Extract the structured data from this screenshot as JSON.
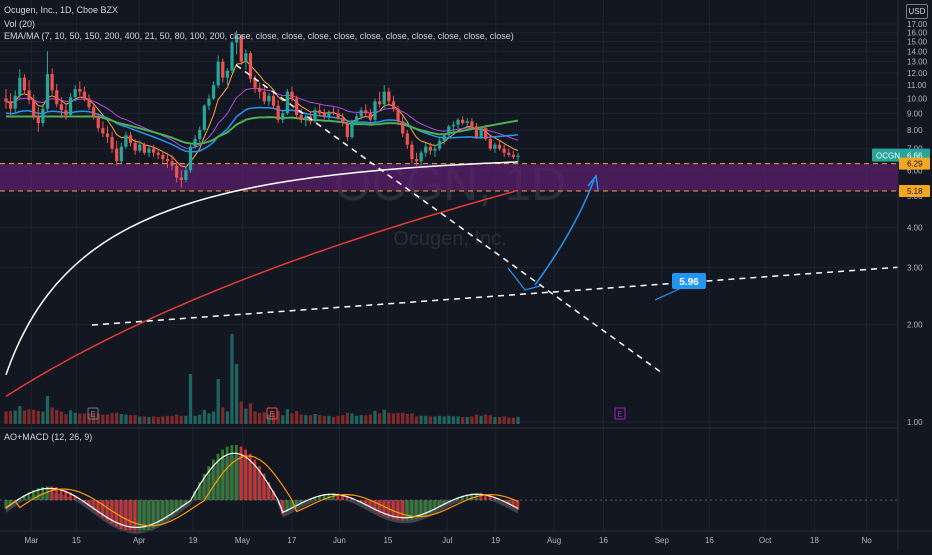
{
  "header": {
    "title": "Ocugen, Inc., 1D, Cboe BZX",
    "volume_legend": "Vol (20)",
    "ma_legend": "EMA/MA (7, 10, 50, 150, 200, 400, 21, 50, 80, 100, 200, close, close, close, close, close, close, close, close, close, close, close)",
    "osc_legend": "AO+MACD (12, 26, 9)",
    "currency": "USD",
    "watermark": "OCGN, 1D",
    "watermark_sub": "Ocugen, Inc."
  },
  "chart_data": {
    "type": "candlestick",
    "symbol": "OCGN",
    "timeframe": "1D",
    "price_axis": {
      "range": [
        0.8,
        17.6
      ],
      "ticks": [
        "1.00",
        "2.00",
        "3.00",
        "4.00",
        "5.00",
        "6.00",
        "7.00",
        "8.00",
        "9.00",
        "10.00",
        "11.00",
        "12.00",
        "13.00",
        "14.00",
        "15.00",
        "16.00",
        "17.00"
      ]
    },
    "time_axis": {
      "labels": [
        "Mar",
        "15",
        "Apr",
        "19",
        "May",
        "17",
        "Jun",
        "15",
        "Jul",
        "19",
        "Aug",
        "16",
        "Sep",
        "16",
        "Oct",
        "18",
        "No"
      ]
    },
    "last_price": {
      "symbol": "OCGN",
      "value": "6.66",
      "color": "#26a69a"
    },
    "levels": [
      {
        "label": "6.29",
        "value": 6.29,
        "color": "#f5a623"
      },
      {
        "label": "5.18",
        "value": 5.18,
        "color": "#f5a623"
      }
    ],
    "annotation_callout": "5.96",
    "colors": {
      "up": "#26a69a",
      "down": "#ef5350",
      "ema_short": "#f7a73a",
      "ema_mid": "#b04ae0",
      "ema_blue": "#2196f3",
      "ema_green": "#4caf50",
      "ma_white": "#ffffff",
      "ma_red": "#e53935",
      "zone": "#5b1f6b",
      "trend": "#ffffff",
      "projection": "#2196f3"
    },
    "candles": [
      [
        10.0,
        10.7,
        9.3,
        9.8
      ],
      [
        9.8,
        10.4,
        8.9,
        9.3
      ],
      [
        9.3,
        10.6,
        9.0,
        10.2
      ],
      [
        10.2,
        12.3,
        10.0,
        11.6
      ],
      [
        11.6,
        11.9,
        10.3,
        10.6
      ],
      [
        10.6,
        11.4,
        9.6,
        9.9
      ],
      [
        9.9,
        10.3,
        8.6,
        8.8
      ],
      [
        8.8,
        9.4,
        7.9,
        8.4
      ],
      [
        8.4,
        9.6,
        8.2,
        9.3
      ],
      [
        9.3,
        14.0,
        9.1,
        11.9
      ],
      [
        11.9,
        12.4,
        10.3,
        10.6
      ],
      [
        10.6,
        11.1,
        9.4,
        9.6
      ],
      [
        9.6,
        10.1,
        8.7,
        9.2
      ],
      [
        9.2,
        9.6,
        8.6,
        8.9
      ],
      [
        8.9,
        10.4,
        8.8,
        10.1
      ],
      [
        10.1,
        11.0,
        9.8,
        10.7
      ],
      [
        10.7,
        11.3,
        10.2,
        10.5
      ],
      [
        10.5,
        10.9,
        9.8,
        10.0
      ],
      [
        10.0,
        10.3,
        9.2,
        9.4
      ],
      [
        9.4,
        9.7,
        8.6,
        8.8
      ],
      [
        8.8,
        9.0,
        7.9,
        8.1
      ],
      [
        8.1,
        8.5,
        7.6,
        7.8
      ],
      [
        7.8,
        8.2,
        7.3,
        7.6
      ],
      [
        7.6,
        7.9,
        6.8,
        7.0
      ],
      [
        7.0,
        7.4,
        6.2,
        6.4
      ],
      [
        6.4,
        7.3,
        6.3,
        7.1
      ],
      [
        7.1,
        7.9,
        7.0,
        7.7
      ],
      [
        7.7,
        7.9,
        7.1,
        7.3
      ],
      [
        7.3,
        7.5,
        6.7,
        6.9
      ],
      [
        6.9,
        7.4,
        6.8,
        7.2
      ],
      [
        7.2,
        7.3,
        6.7,
        6.8
      ],
      [
        6.8,
        7.1,
        6.6,
        7.0
      ],
      [
        7.0,
        7.2,
        6.6,
        6.8
      ],
      [
        6.8,
        7.0,
        6.5,
        6.7
      ],
      [
        6.7,
        6.9,
        6.3,
        6.5
      ],
      [
        6.5,
        6.8,
        6.1,
        6.4
      ],
      [
        6.4,
        6.7,
        6.0,
        6.2
      ],
      [
        6.2,
        6.4,
        5.5,
        5.7
      ],
      [
        5.7,
        6.0,
        5.3,
        5.6
      ],
      [
        5.6,
        6.2,
        5.5,
        6.0
      ],
      [
        6.0,
        7.2,
        5.9,
        7.1
      ],
      [
        7.1,
        7.7,
        7.0,
        7.5
      ],
      [
        7.5,
        8.2,
        7.3,
        8.0
      ],
      [
        8.0,
        9.6,
        7.9,
        9.5
      ],
      [
        9.5,
        10.3,
        9.2,
        10.0
      ],
      [
        10.0,
        11.3,
        9.9,
        11.0
      ],
      [
        11.0,
        13.6,
        10.8,
        13.0
      ],
      [
        13.0,
        13.3,
        11.2,
        11.6
      ],
      [
        11.6,
        12.4,
        11.0,
        12.2
      ],
      [
        12.2,
        15.1,
        12.0,
        14.9
      ],
      [
        14.9,
        16.2,
        13.7,
        15.6
      ],
      [
        15.6,
        15.8,
        12.7,
        13.0
      ],
      [
        13.0,
        14.2,
        12.3,
        13.8
      ],
      [
        13.8,
        14.0,
        11.2,
        11.5
      ],
      [
        11.5,
        11.8,
        10.4,
        10.8
      ],
      [
        10.8,
        11.2,
        10.0,
        10.5
      ],
      [
        10.5,
        10.9,
        9.6,
        9.8
      ],
      [
        9.8,
        10.4,
        9.5,
        10.2
      ],
      [
        10.2,
        10.5,
        9.3,
        9.5
      ],
      [
        9.5,
        9.9,
        8.4,
        8.6
      ],
      [
        8.6,
        9.2,
        8.4,
        9.0
      ],
      [
        9.0,
        10.7,
        8.9,
        10.5
      ],
      [
        10.5,
        10.9,
        9.8,
        10.0
      ],
      [
        10.0,
        10.2,
        8.7,
        8.9
      ],
      [
        8.9,
        9.3,
        8.4,
        8.6
      ],
      [
        8.6,
        9.0,
        8.2,
        8.8
      ],
      [
        8.8,
        9.1,
        8.3,
        8.5
      ],
      [
        8.5,
        9.4,
        8.4,
        9.2
      ],
      [
        9.2,
        9.6,
        8.8,
        9.0
      ],
      [
        9.0,
        9.3,
        8.6,
        8.8
      ],
      [
        8.8,
        9.2,
        8.5,
        9.1
      ],
      [
        9.1,
        9.4,
        8.9,
        9.0
      ],
      [
        9.0,
        9.3,
        8.6,
        8.7
      ],
      [
        8.7,
        9.0,
        8.2,
        8.4
      ],
      [
        8.4,
        8.6,
        7.4,
        7.6
      ],
      [
        7.6,
        8.6,
        7.5,
        8.5
      ],
      [
        8.5,
        9.0,
        8.3,
        8.8
      ],
      [
        8.8,
        9.4,
        8.6,
        9.2
      ],
      [
        9.2,
        9.6,
        8.8,
        9.0
      ],
      [
        9.0,
        9.3,
        8.4,
        8.6
      ],
      [
        8.6,
        10.0,
        8.5,
        9.8
      ],
      [
        9.8,
        10.5,
        9.4,
        9.6
      ],
      [
        9.6,
        11.0,
        9.3,
        10.5
      ],
      [
        10.5,
        10.8,
        9.6,
        9.8
      ],
      [
        9.8,
        10.2,
        9.1,
        9.3
      ],
      [
        9.3,
        9.5,
        8.3,
        8.5
      ],
      [
        8.5,
        8.8,
        7.6,
        7.8
      ],
      [
        7.8,
        8.0,
        7.0,
        7.2
      ],
      [
        7.2,
        7.4,
        6.3,
        6.5
      ],
      [
        6.5,
        6.8,
        6.2,
        6.4
      ],
      [
        6.4,
        6.9,
        6.2,
        6.8
      ],
      [
        6.8,
        7.3,
        6.6,
        7.1
      ],
      [
        7.1,
        7.3,
        6.7,
        6.9
      ],
      [
        6.9,
        7.2,
        6.6,
        7.0
      ],
      [
        7.0,
        7.6,
        6.9,
        7.4
      ],
      [
        7.4,
        7.8,
        7.2,
        7.7
      ],
      [
        7.7,
        8.3,
        7.6,
        8.2
      ],
      [
        8.2,
        8.5,
        7.9,
        8.3
      ],
      [
        8.3,
        8.7,
        8.1,
        8.6
      ],
      [
        8.6,
        8.8,
        8.3,
        8.4
      ],
      [
        8.4,
        8.7,
        8.2,
        8.5
      ],
      [
        8.5,
        8.7,
        8.1,
        8.2
      ],
      [
        8.2,
        8.4,
        7.5,
        7.6
      ],
      [
        7.6,
        8.2,
        7.5,
        8.1
      ],
      [
        8.1,
        8.3,
        7.4,
        7.5
      ],
      [
        7.5,
        7.7,
        6.9,
        7.0
      ],
      [
        7.0,
        7.3,
        6.8,
        7.2
      ],
      [
        7.2,
        7.4,
        6.9,
        7.0
      ],
      [
        7.0,
        7.2,
        6.6,
        6.8
      ],
      [
        6.8,
        7.0,
        6.6,
        6.7
      ],
      [
        6.7,
        6.9,
        6.5,
        6.6
      ],
      [
        6.6,
        6.8,
        6.3,
        6.66
      ]
    ]
  }
}
